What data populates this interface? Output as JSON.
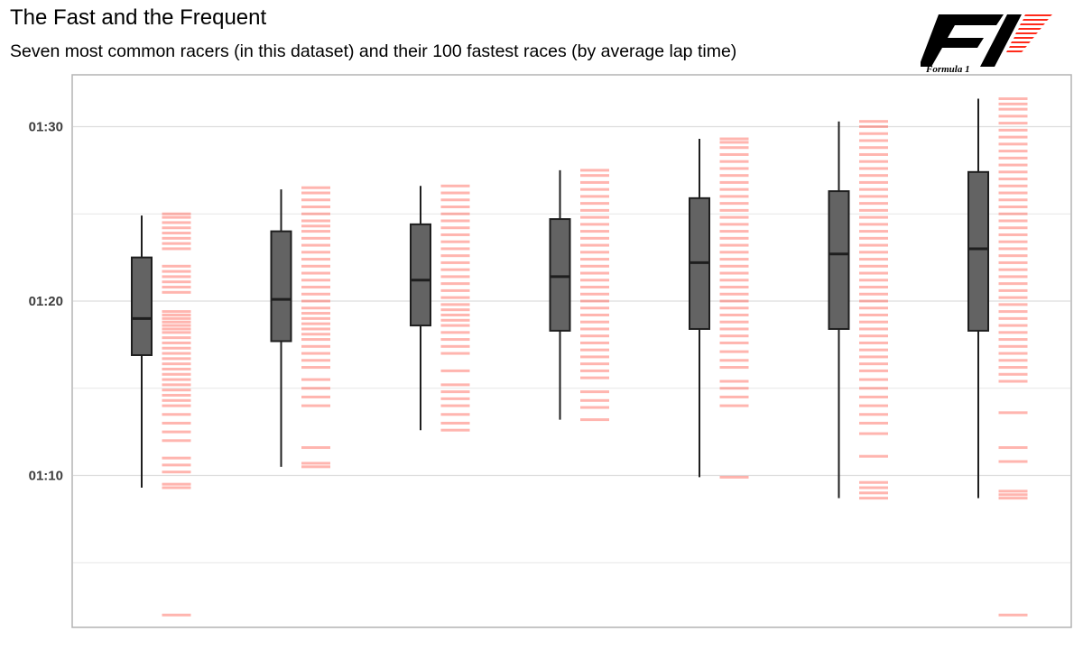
{
  "chart_data": {
    "type": "boxplot",
    "title": "The Fast and the Frequent",
    "subtitle": "Seven most common racers (in this dataset) and their 100 fastest races (by average lap time)",
    "y_ticks": [
      "01:10",
      "01:20",
      "01:30"
    ],
    "ylim": [
      62,
      93
    ],
    "grid": true,
    "legend": "none",
    "colors": {
      "box": "#636363",
      "outline": "#1e1e1e",
      "rug": "#ff2a1a",
      "grid": "#dddddd"
    },
    "series": [
      {
        "min": 69.3,
        "q1": 76.9,
        "median": 79.0,
        "q3": 82.5,
        "max": 84.9,
        "races": [
          62.0,
          69.3,
          69.5,
          70.2,
          70.6,
          71.0,
          72.0,
          72.5,
          73.0,
          73.5,
          74.0,
          74.3,
          74.6,
          74.9,
          75.2,
          75.5,
          75.8,
          76.1,
          76.4,
          76.7,
          77.0,
          77.3,
          77.6,
          77.9,
          78.2,
          78.4,
          78.6,
          78.8,
          79.0,
          79.2,
          79.4,
          80.5,
          80.8,
          81.1,
          81.4,
          81.7,
          82.0,
          83.0,
          83.3,
          83.6,
          83.9,
          84.2,
          84.5,
          84.8,
          85.0
        ]
      },
      {
        "min": 70.5,
        "q1": 77.7,
        "median": 80.1,
        "q3": 84.0,
        "max": 86.4,
        "races": [
          70.5,
          70.7,
          71.6,
          74.0,
          74.5,
          75.0,
          75.5,
          76.2,
          76.6,
          77.0,
          77.4,
          77.8,
          78.1,
          78.4,
          78.7,
          79.0,
          79.3,
          79.6,
          80.0,
          80.4,
          80.8,
          81.2,
          81.6,
          82.0,
          82.4,
          82.8,
          83.2,
          83.6,
          84.0,
          84.3,
          84.6,
          85.0,
          85.4,
          85.8,
          86.2,
          86.5
        ]
      },
      {
        "min": 72.6,
        "q1": 78.6,
        "median": 81.2,
        "q3": 84.4,
        "max": 86.6,
        "races": [
          72.6,
          73.0,
          73.5,
          74.0,
          74.4,
          74.8,
          75.2,
          76.0,
          77.0,
          77.4,
          77.8,
          78.2,
          78.6,
          78.9,
          79.2,
          79.5,
          79.8,
          80.2,
          80.6,
          81.0,
          81.4,
          81.8,
          82.2,
          82.6,
          83.0,
          83.4,
          83.8,
          84.2,
          84.6,
          85.0,
          85.4,
          85.8,
          86.2,
          86.6
        ]
      },
      {
        "min": 73.2,
        "q1": 78.3,
        "median": 81.4,
        "q3": 84.7,
        "max": 87.5,
        "races": [
          73.2,
          73.9,
          74.3,
          74.8,
          75.6,
          76.0,
          76.4,
          76.8,
          77.2,
          77.6,
          78.0,
          78.4,
          78.8,
          79.2,
          79.6,
          80.0,
          80.4,
          80.8,
          81.2,
          81.6,
          82.0,
          82.4,
          82.8,
          83.2,
          83.6,
          84.0,
          84.4,
          84.8,
          85.2,
          85.6,
          86.0,
          86.4,
          86.8,
          87.2,
          87.5
        ]
      },
      {
        "min": 69.9,
        "q1": 78.4,
        "median": 82.2,
        "q3": 85.9,
        "max": 89.3,
        "races": [
          69.9,
          74.0,
          74.5,
          75.0,
          75.4,
          76.2,
          76.6,
          77.1,
          77.6,
          78.0,
          78.4,
          78.8,
          79.2,
          79.6,
          80.0,
          80.4,
          80.8,
          81.2,
          81.6,
          82.0,
          82.4,
          82.8,
          83.2,
          83.6,
          84.0,
          84.4,
          84.8,
          85.2,
          85.6,
          86.0,
          86.4,
          86.8,
          87.2,
          87.6,
          88.0,
          88.4,
          88.8,
          89.1,
          89.3
        ]
      },
      {
        "min": 68.7,
        "q1": 78.4,
        "median": 82.7,
        "q3": 86.3,
        "max": 90.3,
        "races": [
          68.7,
          69.0,
          69.3,
          69.6,
          71.1,
          72.4,
          73.0,
          73.5,
          74.0,
          74.5,
          75.0,
          75.5,
          76.0,
          76.4,
          76.8,
          77.2,
          77.6,
          78.0,
          78.4,
          78.8,
          79.2,
          79.6,
          80.0,
          80.4,
          80.8,
          81.2,
          81.6,
          82.0,
          82.4,
          82.8,
          83.2,
          83.6,
          84.0,
          84.4,
          84.8,
          85.2,
          85.6,
          86.0,
          86.4,
          86.8,
          87.2,
          87.6,
          88.0,
          88.4,
          88.8,
          89.2,
          89.6,
          90.0,
          90.3
        ]
      },
      {
        "min": 68.7,
        "q1": 78.3,
        "median": 83.0,
        "q3": 87.4,
        "max": 91.6,
        "races": [
          62.0,
          68.7,
          68.9,
          69.1,
          70.8,
          71.6,
          73.6,
          75.4,
          75.8,
          76.2,
          76.6,
          77.0,
          77.4,
          77.8,
          78.2,
          78.6,
          79.0,
          79.4,
          79.8,
          80.2,
          80.6,
          81.0,
          81.4,
          81.8,
          82.2,
          82.6,
          83.0,
          83.4,
          83.8,
          84.2,
          84.6,
          85.0,
          85.4,
          85.8,
          86.2,
          86.6,
          87.0,
          87.4,
          87.8,
          88.2,
          88.6,
          89.0,
          89.4,
          89.8,
          90.2,
          90.6,
          91.0,
          91.3,
          91.6
        ]
      }
    ]
  }
}
